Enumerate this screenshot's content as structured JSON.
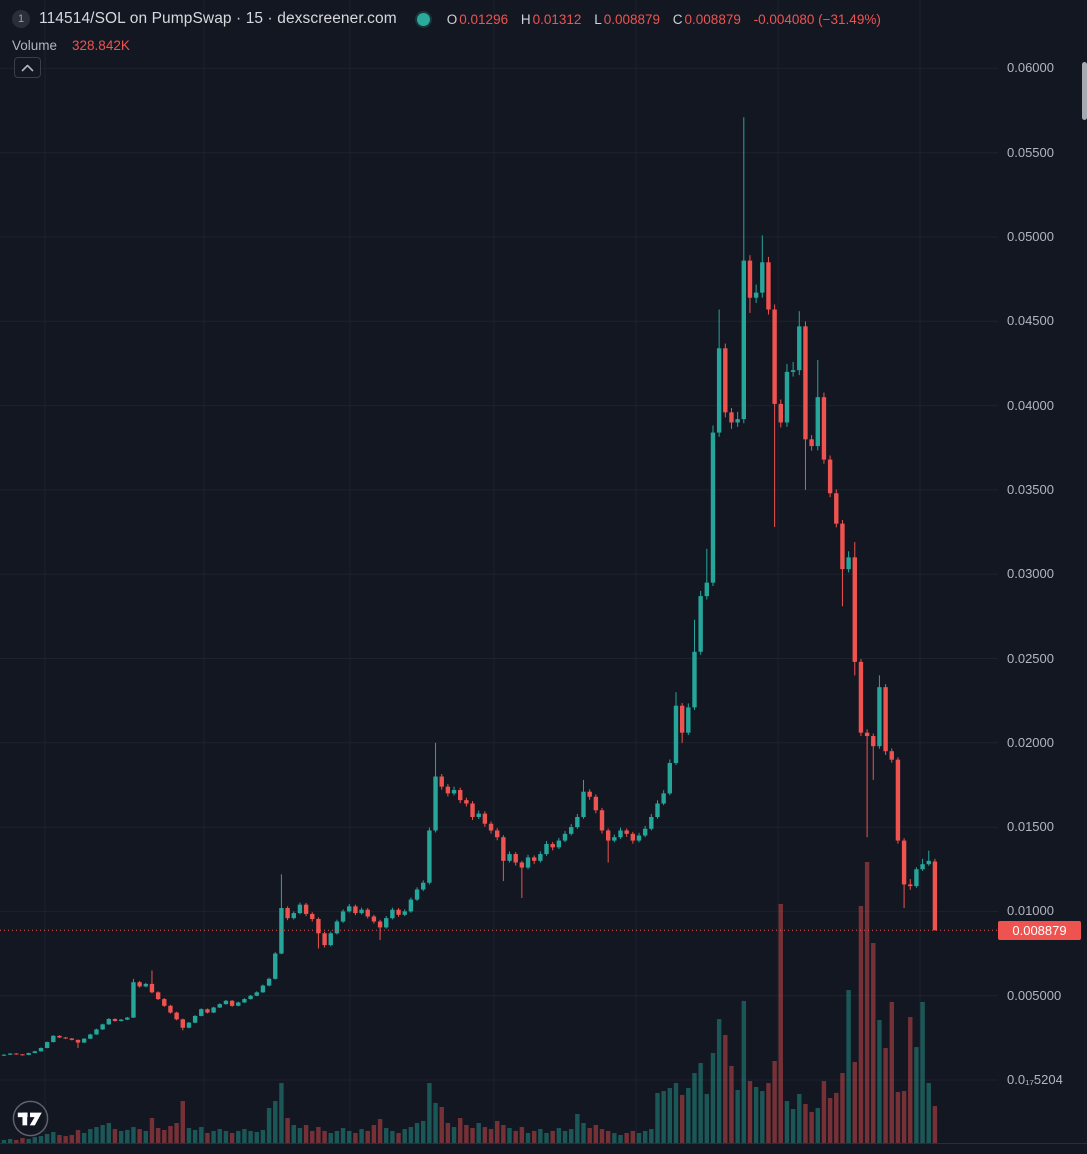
{
  "header": {
    "badge_count": "1",
    "title": "114514/SOL on PumpSwap · 15 · dexscreener.com",
    "ohlc": {
      "open_label": "O",
      "open": "0.01296",
      "high_label": "H",
      "high": "0.01312",
      "low_label": "L",
      "low": "0.008879",
      "close_label": "C",
      "close": "0.008879",
      "change": "-0.004080 (−31.49%)"
    },
    "volume_label": "Volume",
    "volume_value": "328.842K"
  },
  "price_scale": {
    "last_price": 0.008879,
    "last_price_label": "0.008879",
    "ticks": [
      {
        "label": "0.06000",
        "price": 0.06
      },
      {
        "label": "0.05500",
        "price": 0.055
      },
      {
        "label": "0.05000",
        "price": 0.05
      },
      {
        "label": "0.04500",
        "price": 0.045
      },
      {
        "label": "0.04000",
        "price": 0.04
      },
      {
        "label": "0.03500",
        "price": 0.035
      },
      {
        "label": "0.03000",
        "price": 0.03
      },
      {
        "label": "0.02500",
        "price": 0.025
      },
      {
        "label": "0.02000",
        "price": 0.02
      },
      {
        "label": "0.01500",
        "price": 0.015
      },
      {
        "label": "0.01000",
        "price": 0.01
      },
      {
        "label": "0.005000",
        "price": 0.005
      },
      {
        "label": "0.0₁₇5204",
        "price": 0
      }
    ]
  },
  "colors": {
    "background": "#131722",
    "grid": "#1e222d",
    "up": "#26a69a",
    "down": "#ef5350",
    "accent_red": "#ef5350",
    "axis_text": "#b2b5be",
    "status_dot": "#2ba99b"
  },
  "chart_data": {
    "type": "candlestick",
    "symbol": "114514/SOL",
    "venue": "PumpSwap",
    "interval_minutes": 15,
    "source": "dexscreener.com",
    "legend_position": "top-left",
    "grid": true,
    "x_axis_labels_visible": false,
    "y_axis": {
      "visible_min": 0,
      "visible_max": 0.0615
    },
    "price_unit": 1e-05,
    "ohlc_format": [
      "open",
      "high",
      "low",
      "close"
    ],
    "candles": [
      [
        145,
        153,
        143,
        150
      ],
      [
        150,
        159,
        149,
        157
      ],
      [
        157,
        159,
        150,
        152
      ],
      [
        152,
        154,
        146,
        149
      ],
      [
        149,
        162,
        148,
        160
      ],
      [
        160,
        173,
        158,
        170
      ],
      [
        170,
        193,
        168,
        190
      ],
      [
        190,
        228,
        188,
        225
      ],
      [
        225,
        266,
        223,
        262
      ],
      [
        262,
        265,
        249,
        252
      ],
      [
        252,
        255,
        243,
        246
      ],
      [
        246,
        249,
        235,
        238
      ],
      [
        238,
        240,
        190,
        222
      ],
      [
        222,
        248,
        220,
        245
      ],
      [
        245,
        274,
        243,
        270
      ],
      [
        270,
        304,
        268,
        300
      ],
      [
        300,
        334,
        297,
        330
      ],
      [
        330,
        367,
        327,
        362
      ],
      [
        362,
        366,
        346,
        350
      ],
      [
        350,
        362,
        347,
        358
      ],
      [
        358,
        374,
        355,
        370
      ],
      [
        370,
        600,
        368,
        580
      ],
      [
        580,
        588,
        548,
        555
      ],
      [
        555,
        576,
        550,
        570
      ],
      [
        570,
        650,
        514,
        520
      ],
      [
        520,
        526,
        474,
        480
      ],
      [
        480,
        486,
        434,
        440
      ],
      [
        440,
        446,
        394,
        400
      ],
      [
        400,
        405,
        354,
        360
      ],
      [
        360,
        364,
        295,
        310
      ],
      [
        310,
        344,
        307,
        340
      ],
      [
        340,
        384,
        337,
        380
      ],
      [
        380,
        425,
        377,
        420
      ],
      [
        420,
        424,
        395,
        400
      ],
      [
        400,
        434,
        397,
        430
      ],
      [
        430,
        455,
        427,
        450
      ],
      [
        450,
        475,
        447,
        470
      ],
      [
        470,
        474,
        434,
        440
      ],
      [
        440,
        465,
        437,
        460
      ],
      [
        460,
        485,
        457,
        480
      ],
      [
        480,
        505,
        477,
        500
      ],
      [
        500,
        526,
        497,
        520
      ],
      [
        520,
        566,
        517,
        560
      ],
      [
        560,
        607,
        556,
        600
      ],
      [
        600,
        758,
        596,
        750
      ],
      [
        750,
        1220,
        746,
        1020
      ],
      [
        1020,
        1030,
        948,
        960
      ],
      [
        960,
        1000,
        952,
        990
      ],
      [
        990,
        1052,
        983,
        1040
      ],
      [
        1040,
        1050,
        972,
        985
      ],
      [
        985,
        995,
        940,
        955
      ],
      [
        955,
        965,
        780,
        870
      ],
      [
        870,
        880,
        786,
        800
      ],
      [
        800,
        880,
        793,
        870
      ],
      [
        870,
        951,
        863,
        940
      ],
      [
        940,
        1012,
        932,
        1000
      ],
      [
        1000,
        1043,
        993,
        1030
      ],
      [
        1030,
        1040,
        978,
        990
      ],
      [
        990,
        1022,
        982,
        1010
      ],
      [
        1010,
        1020,
        958,
        970
      ],
      [
        970,
        980,
        928,
        940
      ],
      [
        940,
        950,
        830,
        905
      ],
      [
        905,
        972,
        898,
        960
      ],
      [
        960,
        1022,
        952,
        1010
      ],
      [
        1010,
        1020,
        968,
        980
      ],
      [
        980,
        1012,
        972,
        1000
      ],
      [
        1000,
        1082,
        992,
        1070
      ],
      [
        1070,
        1143,
        1062,
        1130
      ],
      [
        1130,
        1184,
        1120,
        1170
      ],
      [
        1170,
        1497,
        1160,
        1480
      ],
      [
        1480,
        2000,
        1468,
        1800
      ],
      [
        1800,
        1815,
        1722,
        1740
      ],
      [
        1740,
        1755,
        1682,
        1700
      ],
      [
        1700,
        1740,
        1688,
        1720
      ],
      [
        1720,
        1734,
        1642,
        1660
      ],
      [
        1660,
        1674,
        1622,
        1640
      ],
      [
        1640,
        1654,
        1542,
        1560
      ],
      [
        1560,
        1598,
        1548,
        1580
      ],
      [
        1580,
        1594,
        1502,
        1520
      ],
      [
        1520,
        1534,
        1462,
        1480
      ],
      [
        1480,
        1494,
        1422,
        1440
      ],
      [
        1440,
        1452,
        1180,
        1300
      ],
      [
        1300,
        1356,
        1290,
        1340
      ],
      [
        1340,
        1352,
        1272,
        1290
      ],
      [
        1290,
        1300,
        1080,
        1260
      ],
      [
        1260,
        1336,
        1250,
        1320
      ],
      [
        1320,
        1332,
        1282,
        1300
      ],
      [
        1300,
        1356,
        1290,
        1340
      ],
      [
        1340,
        1418,
        1330,
        1400
      ],
      [
        1400,
        1412,
        1362,
        1380
      ],
      [
        1380,
        1436,
        1370,
        1420
      ],
      [
        1420,
        1477,
        1410,
        1460
      ],
      [
        1460,
        1518,
        1450,
        1500
      ],
      [
        1500,
        1578,
        1490,
        1560
      ],
      [
        1560,
        1780,
        1550,
        1710
      ],
      [
        1710,
        1724,
        1662,
        1680
      ],
      [
        1680,
        1694,
        1582,
        1600
      ],
      [
        1600,
        1614,
        1462,
        1480
      ],
      [
        1480,
        1492,
        1290,
        1420
      ],
      [
        1420,
        1456,
        1410,
        1440
      ],
      [
        1440,
        1497,
        1430,
        1480
      ],
      [
        1480,
        1492,
        1442,
        1460
      ],
      [
        1460,
        1472,
        1402,
        1420
      ],
      [
        1420,
        1466,
        1410,
        1450
      ],
      [
        1450,
        1507,
        1440,
        1490
      ],
      [
        1490,
        1578,
        1480,
        1560
      ],
      [
        1560,
        1659,
        1550,
        1640
      ],
      [
        1640,
        1719,
        1630,
        1700
      ],
      [
        1700,
        1901,
        1690,
        1880
      ],
      [
        1880,
        2300,
        1868,
        2220
      ],
      [
        2220,
        2236,
        2000,
        2060
      ],
      [
        2060,
        2234,
        2046,
        2210
      ],
      [
        2210,
        2730,
        2195,
        2540
      ],
      [
        2540,
        2901,
        2522,
        2870
      ],
      [
        2870,
        3150,
        2850,
        2950
      ],
      [
        2950,
        3882,
        2930,
        3840
      ],
      [
        3840,
        4570,
        3815,
        4340
      ],
      [
        4340,
        4368,
        3930,
        3960
      ],
      [
        3960,
        3986,
        3862,
        3900
      ],
      [
        3900,
        3963,
        3874,
        3920
      ],
      [
        3920,
        5710,
        3895,
        4860
      ],
      [
        4860,
        4892,
        4550,
        4640
      ],
      [
        4640,
        4718,
        4609,
        4670
      ],
      [
        4670,
        5010,
        4640,
        4850
      ],
      [
        4850,
        4882,
        4540,
        4570
      ],
      [
        4570,
        4600,
        3280,
        4010
      ],
      [
        4010,
        4036,
        3870,
        3900
      ],
      [
        3900,
        4247,
        3874,
        4200
      ],
      [
        4200,
        4259,
        4172,
        4210
      ],
      [
        4210,
        4560,
        4181,
        4470
      ],
      [
        4470,
        4499,
        3500,
        3800
      ],
      [
        3800,
        3825,
        3733,
        3760
      ],
      [
        3760,
        4270,
        3735,
        4050
      ],
      [
        4050,
        4077,
        3655,
        3680
      ],
      [
        3680,
        3704,
        3457,
        3480
      ],
      [
        3480,
        3503,
        3278,
        3300
      ],
      [
        3300,
        3322,
        2810,
        3030
      ],
      [
        3030,
        3136,
        3010,
        3100
      ],
      [
        3100,
        3190,
        2400,
        2480
      ],
      [
        2480,
        2497,
        2040,
        2060
      ],
      [
        2060,
        2080,
        1440,
        2040
      ],
      [
        2040,
        2055,
        1780,
        1980
      ],
      [
        1980,
        2400,
        1965,
        2330
      ],
      [
        2330,
        2348,
        1928,
        1950
      ],
      [
        1950,
        1966,
        1882,
        1900
      ],
      [
        1900,
        1914,
        1402,
        1420
      ],
      [
        1420,
        1434,
        1020,
        1160
      ],
      [
        1160,
        1192,
        1128,
        1150
      ],
      [
        1150,
        1262,
        1140,
        1250
      ],
      [
        1250,
        1312,
        1240,
        1280
      ],
      [
        1280,
        1360,
        1270,
        1300
      ],
      [
        1296,
        1312,
        887.9,
        887.9
      ]
    ],
    "volumes_k": [
      27,
      36,
      27,
      44,
      36,
      53,
      62,
      80,
      98,
      71,
      62,
      71,
      116,
      89,
      124,
      142,
      160,
      178,
      124,
      107,
      116,
      142,
      124,
      107,
      222,
      133,
      116,
      151,
      178,
      373,
      133,
      116,
      142,
      89,
      107,
      124,
      107,
      89,
      107,
      124,
      107,
      98,
      116,
      311,
      373,
      533,
      222,
      160,
      133,
      160,
      107,
      142,
      107,
      89,
      107,
      133,
      107,
      89,
      124,
      107,
      160,
      213,
      133,
      107,
      89,
      124,
      142,
      178,
      196,
      533,
      356,
      320,
      178,
      142,
      222,
      160,
      133,
      178,
      142,
      124,
      196,
      160,
      133,
      107,
      142,
      89,
      107,
      124,
      89,
      107,
      133,
      107,
      124,
      258,
      178,
      133,
      160,
      124,
      107,
      89,
      71,
      89,
      107,
      89,
      107,
      124,
      445,
      462,
      489,
      533,
      427,
      489,
      622,
      711,
      436,
      800,
      1102,
      960,
      685,
      471,
      1263,
      551,
      498,
      462,
      533,
      729,
      2125,
      373,
      302,
      436,
      347,
      276,
      311,
      551,
      400,
      445,
      622,
      1360,
      720,
      2107,
      2498,
      1778,
      1093,
      845,
      1254,
      453,
      462,
      1120,
      853,
      1254,
      533,
      328.842
    ]
  }
}
